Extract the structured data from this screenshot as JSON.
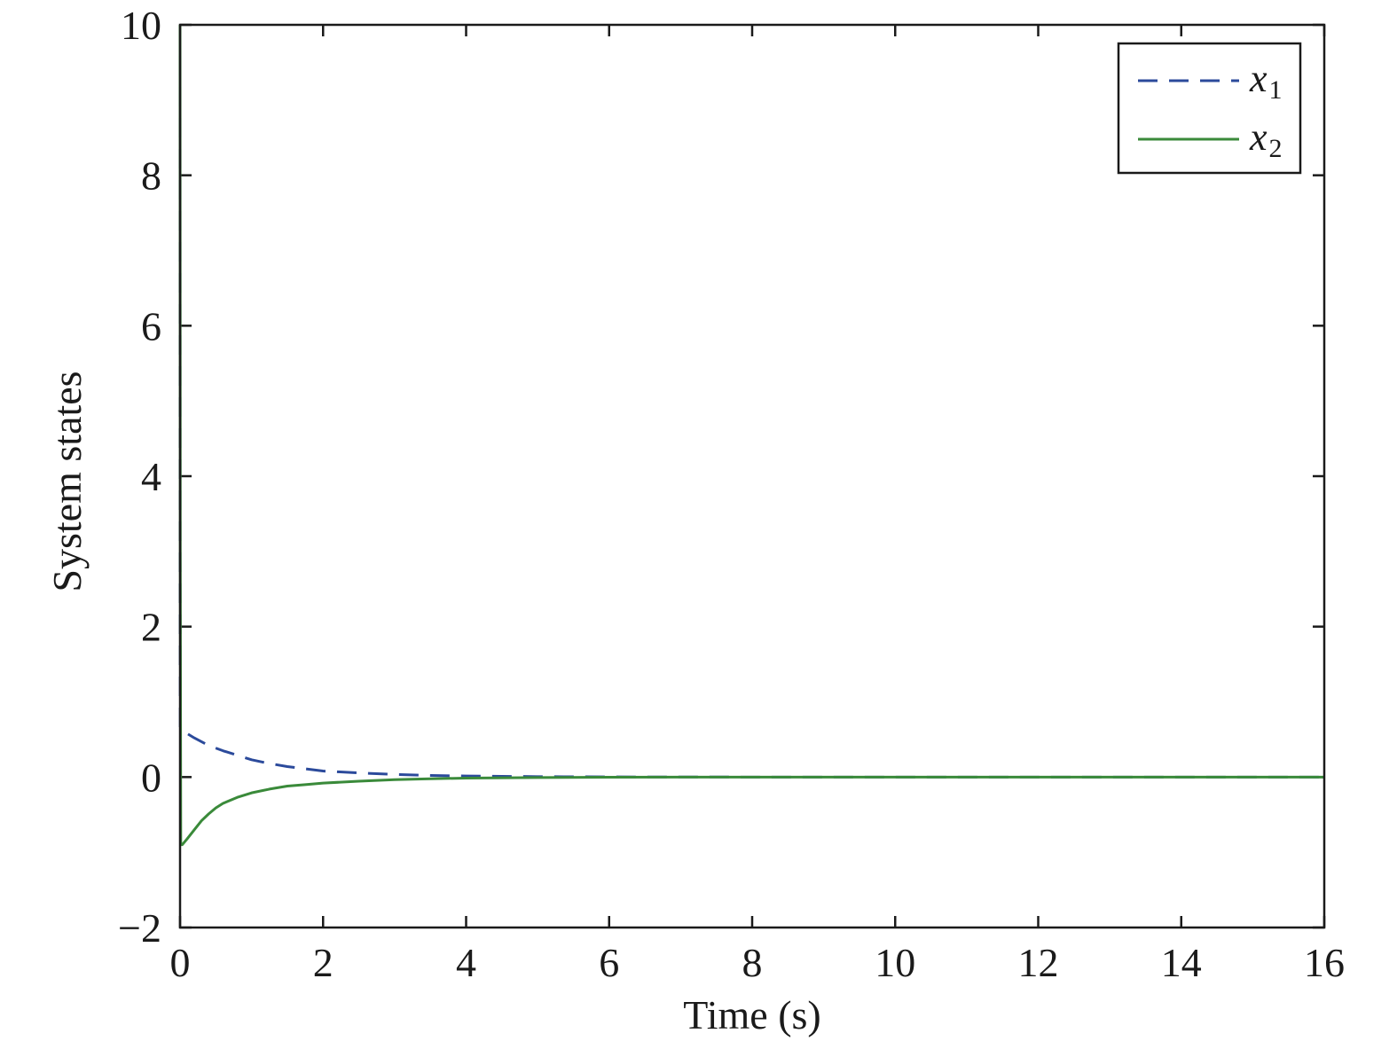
{
  "chart_data": {
    "type": "line",
    "title": "",
    "xlabel": "Time (s)",
    "ylabel": "System states",
    "xlim": [
      0,
      16
    ],
    "ylim": [
      -2,
      10
    ],
    "xticks": [
      0,
      2,
      4,
      6,
      8,
      10,
      12,
      14,
      16
    ],
    "xtick_labels": [
      "0",
      "2",
      "4",
      "6",
      "8",
      "10",
      "12",
      "14",
      "16"
    ],
    "yticks": [
      -2,
      0,
      2,
      4,
      6,
      8,
      10
    ],
    "ytick_labels": [
      "−2",
      "0",
      "2",
      "4",
      "6",
      "8",
      "10"
    ],
    "grid": false,
    "legend_position": "top-right",
    "series": [
      {
        "name": "x",
        "subscript": "1",
        "color": "#2b4a9b",
        "dash": "dashed",
        "x": [
          0,
          0.001,
          0.003,
          0.01,
          0.2,
          0.4,
          0.6,
          0.8,
          1.0,
          1.25,
          1.5,
          1.75,
          2.0,
          2.5,
          3.0,
          3.5,
          4.0,
          5.0,
          6.0,
          8.0,
          10.0,
          12.0,
          14.0,
          16.0
        ],
        "y": [
          10,
          3.0,
          0.63,
          0.63,
          0.52,
          0.42,
          0.35,
          0.29,
          0.23,
          0.18,
          0.14,
          0.11,
          0.08,
          0.055,
          0.035,
          0.022,
          0.014,
          0.006,
          0.002,
          0.0,
          0.0,
          0.0,
          0.0,
          0.0
        ]
      },
      {
        "name": "x",
        "subscript": "2",
        "color": "#3a8a3a",
        "dash": "solid",
        "x": [
          0,
          0.003,
          0.01,
          0.03,
          0.1,
          0.2,
          0.3,
          0.4,
          0.5,
          0.6,
          0.8,
          1.0,
          1.25,
          1.5,
          1.75,
          2.0,
          2.5,
          3.0,
          3.5,
          4.0,
          5.0,
          6.0,
          8.0,
          10.0,
          12.0,
          14.0,
          16.0
        ],
        "y": [
          10,
          3.0,
          -0.9,
          -0.9,
          -0.82,
          -0.7,
          -0.58,
          -0.49,
          -0.41,
          -0.35,
          -0.27,
          -0.21,
          -0.16,
          -0.12,
          -0.1,
          -0.08,
          -0.055,
          -0.035,
          -0.022,
          -0.014,
          -0.006,
          -0.002,
          0.0,
          0.0,
          0.0,
          0.0,
          0.0
        ]
      }
    ]
  }
}
